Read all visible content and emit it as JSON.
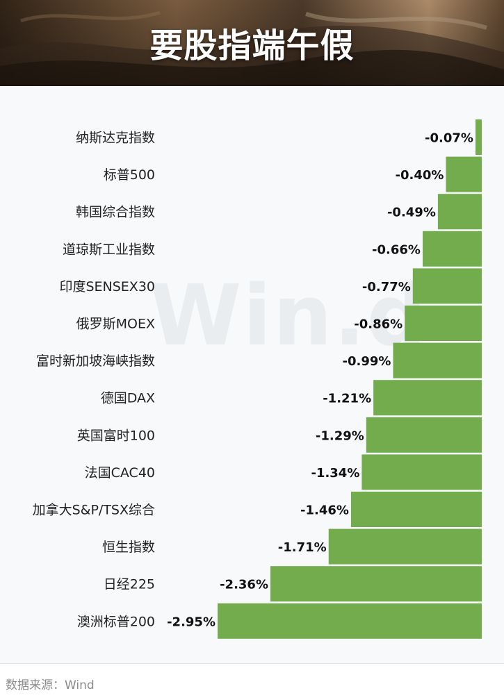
{
  "header": {
    "title": "要股指端午假"
  },
  "watermark": "Win.d",
  "source": "数据来源：Wind",
  "colors": {
    "bar": "#72ac4d",
    "panel_bg": "#f7f9fb",
    "header_dark": "#2a1d12",
    "header_light": "#c49a6c"
  },
  "chart_data": {
    "type": "bar",
    "orientation": "horizontal",
    "title": "",
    "xlabel": "",
    "ylabel": "",
    "categories": [
      "纳斯达克指数",
      "标普500",
      "韩国综合指数",
      "道琼斯工业指数",
      "印度SENSEX30",
      "俄罗斯MOEX",
      "富时新加坡海峡指数",
      "德国DAX",
      "英国富时100",
      "法国CAC40",
      "加拿大S&P/TSX综合",
      "恒生指数",
      "日经225",
      "澳洲标普200"
    ],
    "values": [
      -0.07,
      -0.4,
      -0.49,
      -0.66,
      -0.77,
      -0.86,
      -0.99,
      -1.21,
      -1.29,
      -1.34,
      -1.46,
      -1.71,
      -2.36,
      -2.95
    ],
    "data_labels": [
      "-0.07%",
      "-0.40%",
      "-0.49%",
      "-0.66%",
      "-0.77%",
      "-0.86%",
      "-0.99%",
      "-1.21%",
      "-1.29%",
      "-1.34%",
      "-1.46%",
      "-1.71%",
      "-2.36%",
      "-2.95%"
    ],
    "unit": "%",
    "xlim": [
      -2.95,
      0
    ],
    "grid": false,
    "legend": "none"
  }
}
